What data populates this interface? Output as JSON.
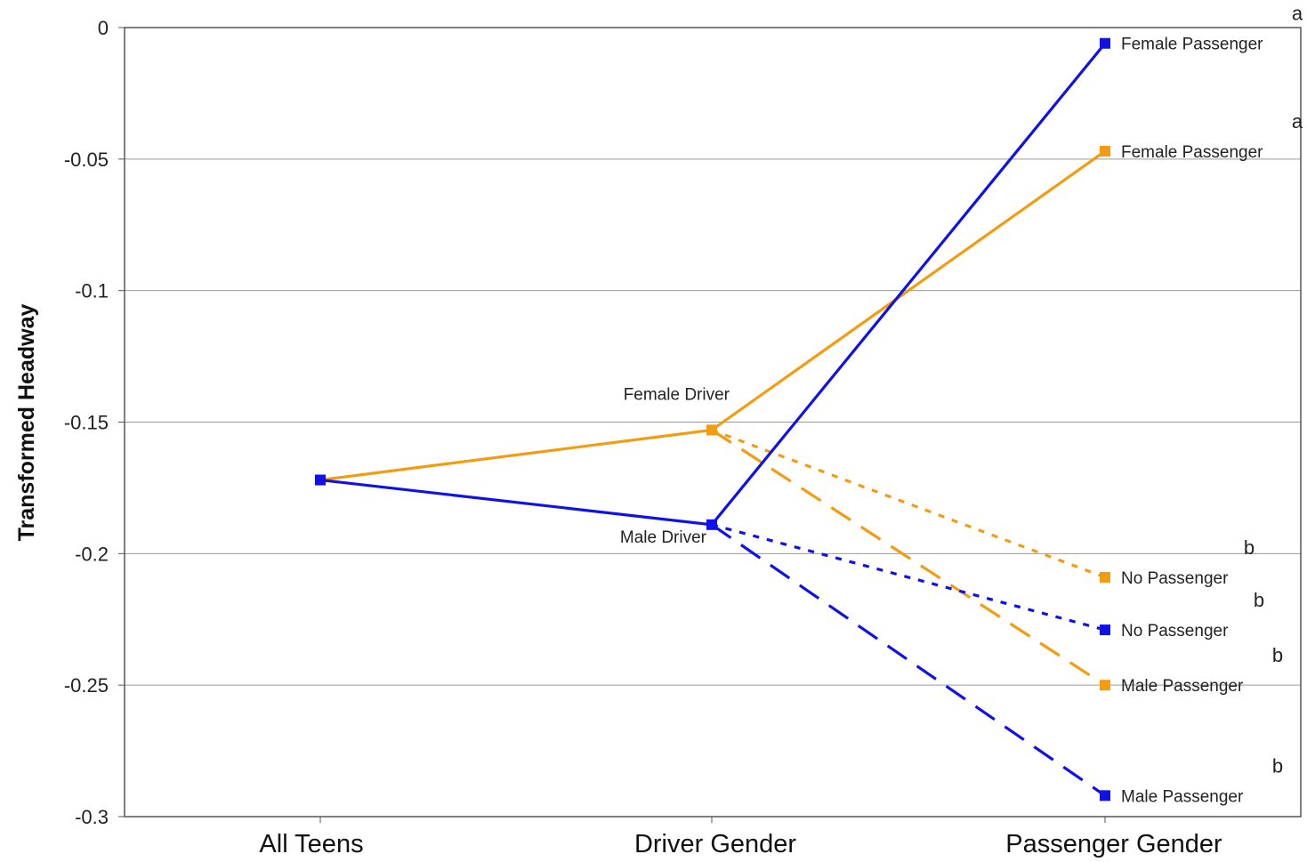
{
  "chart_data": {
    "type": "line",
    "ylabel": "Transformed Headway",
    "xlabel": "",
    "categories": [
      "All Teens",
      "Driver Gender",
      "Passenger Gender"
    ],
    "ylim": [
      -0.3,
      0
    ],
    "yticks": [
      "0",
      "-0.05",
      "-0.1",
      "-0.15",
      "-0.2",
      "-0.25",
      "-0.3"
    ],
    "ytick_values": [
      0,
      -0.05,
      -0.1,
      -0.15,
      -0.2,
      -0.25,
      -0.3
    ],
    "grid": "horizontal",
    "colors": {
      "female": "#f39c12",
      "male": "#1010e8"
    },
    "series": [
      {
        "group": "female",
        "dash": "solid",
        "values": [
          -0.172,
          -0.153,
          -0.047
        ]
      },
      {
        "group": "female",
        "dash": "dotted",
        "values": [
          null,
          -0.153,
          -0.209
        ]
      },
      {
        "group": "female",
        "dash": "dashed",
        "values": [
          null,
          -0.153,
          -0.25
        ]
      },
      {
        "group": "male",
        "dash": "solid",
        "values": [
          -0.172,
          -0.189,
          -0.006
        ]
      },
      {
        "group": "male",
        "dash": "dotted",
        "values": [
          null,
          -0.189,
          -0.229
        ]
      },
      {
        "group": "male",
        "dash": "dashed",
        "values": [
          null,
          -0.189,
          -0.292
        ]
      }
    ],
    "point_labels": [
      {
        "text": "Female Driver",
        "x": 1,
        "y": -0.153,
        "anchor": "above-left"
      },
      {
        "text": "Male Driver",
        "x": 1,
        "y": -0.189,
        "anchor": "below-left"
      },
      {
        "text": "Female Passenger",
        "x": 2,
        "y": -0.006,
        "anchor": "right"
      },
      {
        "text": "Female Passenger",
        "x": 2,
        "y": -0.047,
        "anchor": "right"
      },
      {
        "text": "No Passenger",
        "x": 2,
        "y": -0.209,
        "anchor": "right"
      },
      {
        "text": "No Passenger",
        "x": 2,
        "y": -0.229,
        "anchor": "right"
      },
      {
        "text": "Male Passenger",
        "x": 2,
        "y": -0.25,
        "anchor": "right"
      },
      {
        "text": "Male Passenger",
        "x": 2,
        "y": -0.292,
        "anchor": "right"
      }
    ],
    "significance_letters": [
      {
        "text": "a",
        "y": -0.006
      },
      {
        "text": "a",
        "y": -0.047
      },
      {
        "text": "b",
        "y": -0.209
      },
      {
        "text": "b",
        "y": -0.229
      },
      {
        "text": "b",
        "y": -0.25
      },
      {
        "text": "b",
        "y": -0.292
      }
    ]
  }
}
